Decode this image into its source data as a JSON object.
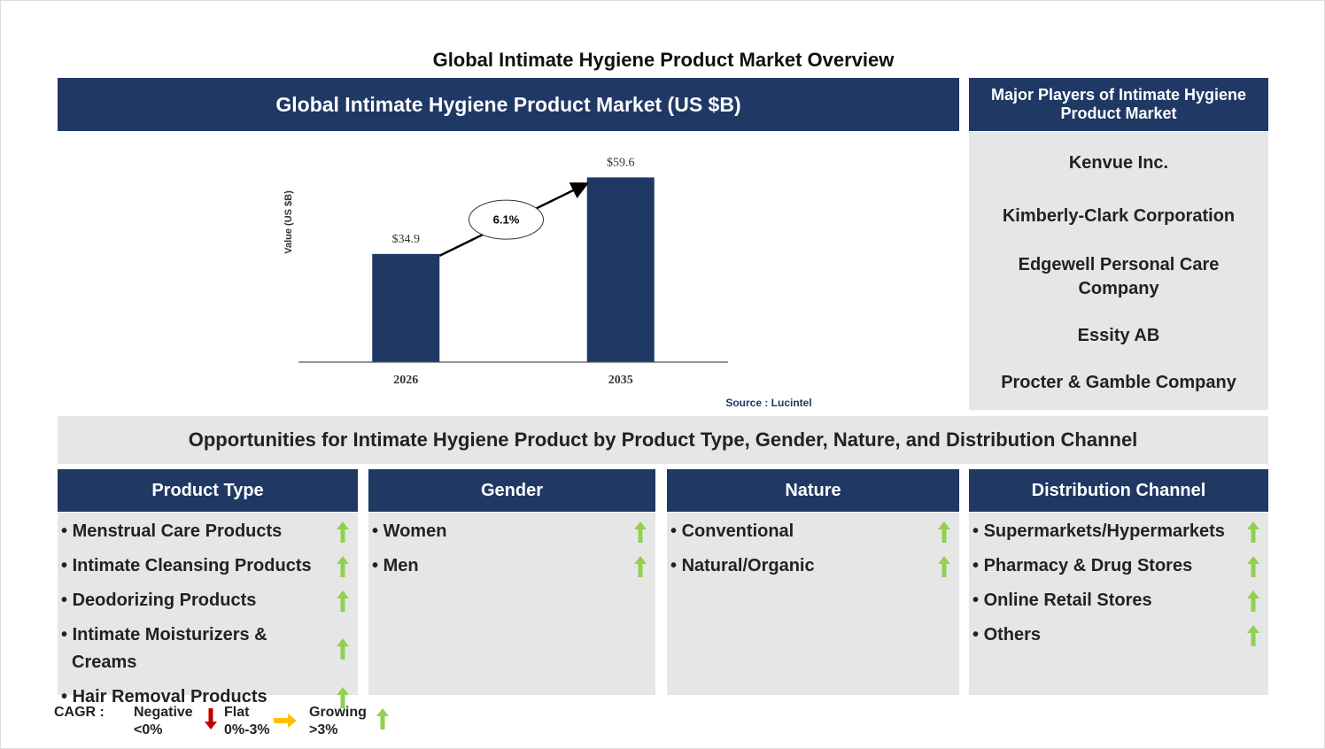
{
  "title": "Global Intimate Hygiene Product Market Overview",
  "chart_data": {
    "type": "bar",
    "title": "Global Intimate Hygiene Product Market (US $B)",
    "y_label": "Value (US $B)",
    "categories": [
      "2026",
      "2035"
    ],
    "values": [
      34.9,
      59.6
    ],
    "value_labels": [
      "$34.9",
      "$59.6"
    ],
    "color": "#1f3864",
    "ylim": [
      0,
      70
    ],
    "annotation": "6.1%",
    "source": "Source : Lucintel"
  },
  "players": {
    "title": "Major Players of Intimate Hygiene Product Market",
    "items": [
      "Kenvue Inc.",
      "Kimberly-Clark Corporation",
      "Edgewell Personal Care Company",
      "Essity AB",
      "Procter & Gamble Company"
    ]
  },
  "opportunities": {
    "title": "Opportunities for Intimate Hygiene Product by Product Type, Gender, Nature, and Distribution Channel",
    "columns": [
      {
        "header": "Product Type",
        "items": [
          "Menstrual Care Products",
          "Intimate Cleansing Products",
          "Deodorizing Products",
          "Intimate Moisturizers & Creams",
          "Hair Removal Products"
        ]
      },
      {
        "header": "Gender",
        "items": [
          "Women",
          "Men"
        ]
      },
      {
        "header": "Nature",
        "items": [
          "Conventional",
          "Natural/Organic"
        ]
      },
      {
        "header": "Distribution Channel",
        "items": [
          "Supermarkets/Hypermarkets",
          "Pharmacy & Drug Stores",
          "Online Retail Stores",
          "Others"
        ]
      }
    ]
  },
  "legend": {
    "label": "CAGR :",
    "entries": [
      {
        "name": "Negative",
        "range": "<0%"
      },
      {
        "name": "Flat",
        "range": "0%-3%"
      },
      {
        "name": "Growing",
        "range": ">3%"
      }
    ]
  }
}
